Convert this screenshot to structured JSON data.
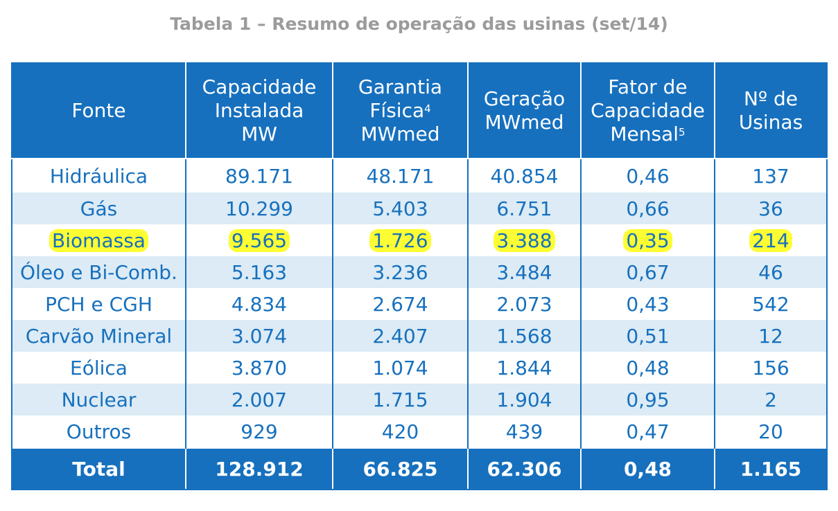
{
  "title": "Tabela 1 – Resumo de operação das usinas (set/14)",
  "headers": {
    "fonte": "Fonte",
    "capacidade": [
      "Capacidade",
      "Instalada",
      "MW"
    ],
    "garantia": [
      "Garantia",
      "Física",
      "4",
      "MWmed"
    ],
    "geracao": [
      "Geração",
      "MWmed"
    ],
    "fator": [
      "Fator de",
      "Capacidade",
      "Mensal",
      "5"
    ],
    "usinas": [
      "Nº de",
      "Usinas"
    ]
  },
  "rows": [
    {
      "fonte": "Hidráulica",
      "capacidade": "89.171",
      "garantia": "48.171",
      "geracao": "40.854",
      "fator": "0,46",
      "usinas": "137"
    },
    {
      "fonte": "Gás",
      "capacidade": "10.299",
      "garantia": "5.403",
      "geracao": "6.751",
      "fator": "0,66",
      "usinas": "36"
    },
    {
      "fonte": "Biomassa",
      "capacidade": "9.565",
      "garantia": "1.726",
      "geracao": "3.388",
      "fator": "0,35",
      "usinas": "214"
    },
    {
      "fonte": "Óleo e Bi-Comb.",
      "capacidade": "5.163",
      "garantia": "3.236",
      "geracao": "3.484",
      "fator": "0,67",
      "usinas": "46"
    },
    {
      "fonte": "PCH e CGH",
      "capacidade": "4.834",
      "garantia": "2.674",
      "geracao": "2.073",
      "fator": "0,43",
      "usinas": "542"
    },
    {
      "fonte": "Carvão Mineral",
      "capacidade": "3.074",
      "garantia": "2.407",
      "geracao": "1.568",
      "fator": "0,51",
      "usinas": "12"
    },
    {
      "fonte": "Eólica",
      "capacidade": "3.870",
      "garantia": "1.074",
      "geracao": "1.844",
      "fator": "0,48",
      "usinas": "156"
    },
    {
      "fonte": "Nuclear",
      "capacidade": "2.007",
      "garantia": "1.715",
      "geracao": "1.904",
      "fator": "0,95",
      "usinas": "2"
    },
    {
      "fonte": "Outros",
      "capacidade": "929",
      "garantia": "420",
      "geracao": "439",
      "fator": "0,47",
      "usinas": "20"
    }
  ],
  "total": {
    "fonte": "Total",
    "capacidade": "128.912",
    "garantia": "66.825",
    "geracao": "62.306",
    "fator": "0,48",
    "usinas": "1.165"
  },
  "highlight_color": "#fdfd33",
  "header_color": "#1670be",
  "stripe_color": "#dcebf5"
}
